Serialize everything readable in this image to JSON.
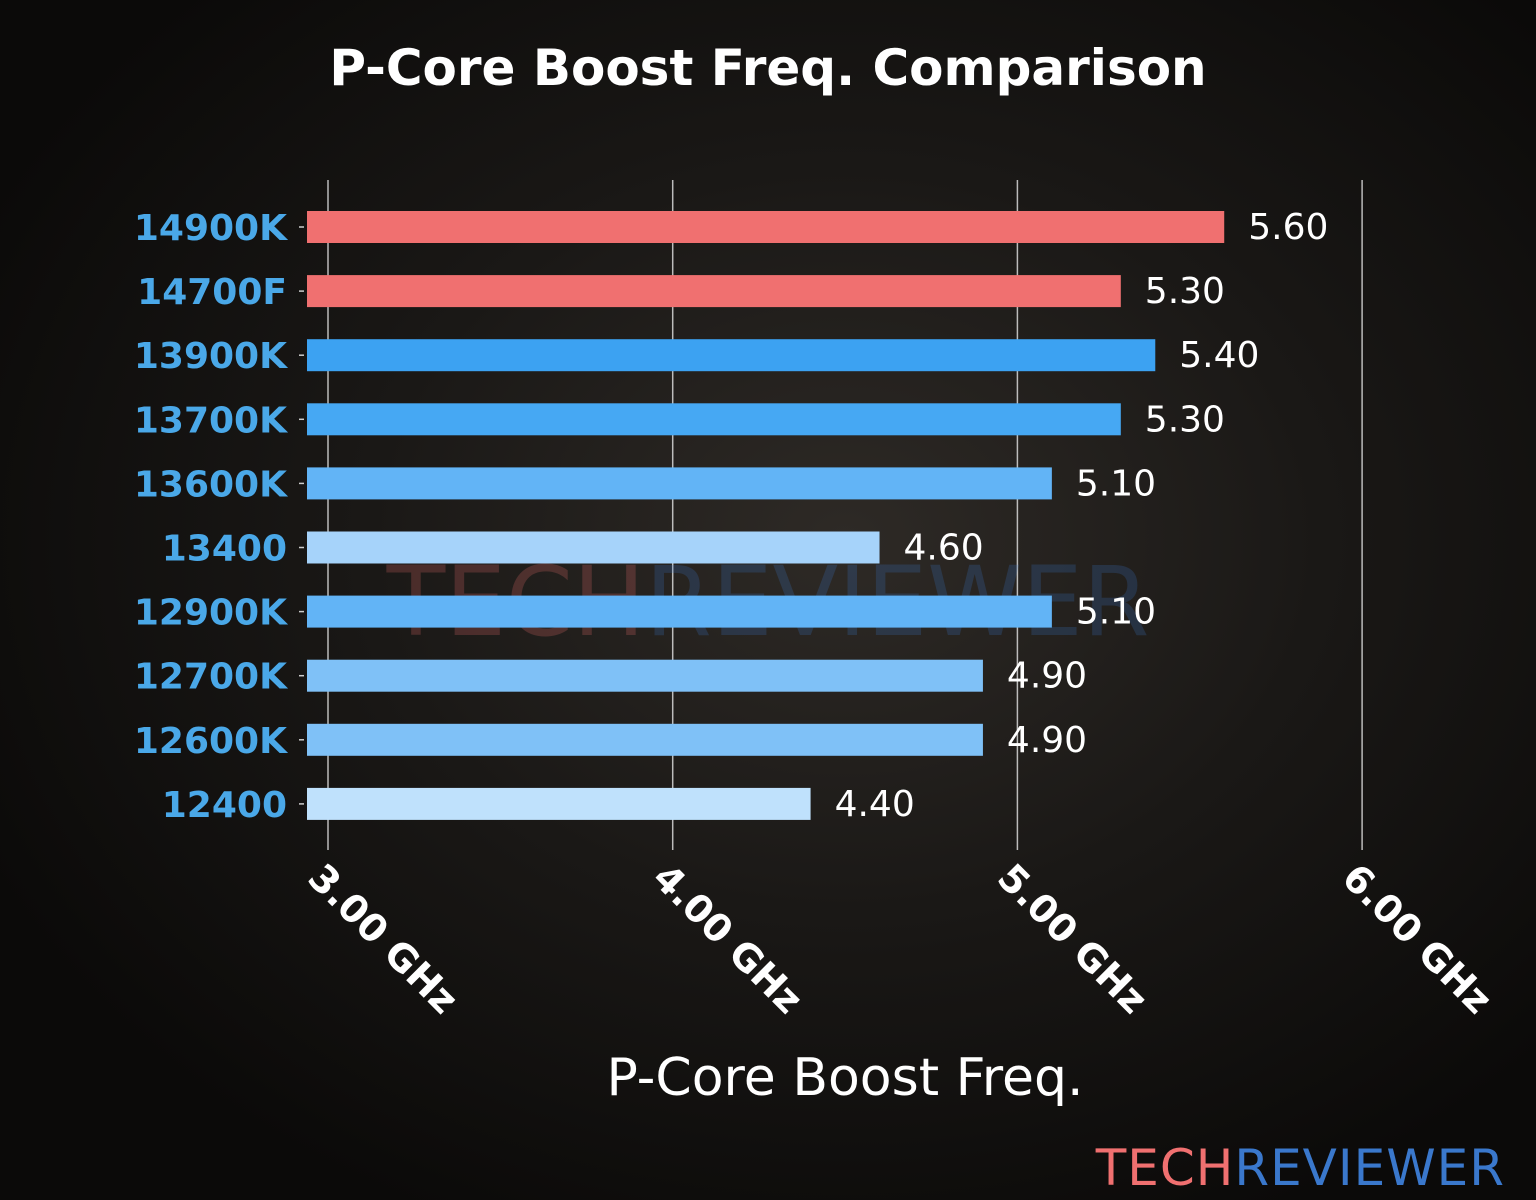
{
  "chart_data": {
    "type": "bar",
    "orientation": "horizontal",
    "title": "P-Core Boost Freq. Comparison",
    "xlabel": "P-Core Boost Freq.",
    "ylabel": "",
    "categories": [
      "14900K",
      "14700F",
      "13900K",
      "13700K",
      "13600K",
      "13400",
      "12900K",
      "12700K",
      "12600K",
      "12400"
    ],
    "values": [
      5.6,
      5.3,
      5.4,
      5.3,
      5.1,
      4.6,
      5.1,
      4.9,
      4.9,
      4.4
    ],
    "value_labels": [
      "5.60",
      "5.30",
      "5.40",
      "5.30",
      "5.10",
      "4.60",
      "5.10",
      "4.90",
      "4.90",
      "4.40"
    ],
    "colors": [
      "#f07070",
      "#f07070",
      "#3ca2f2",
      "#46a8f3",
      "#62b4f6",
      "#a6d3fa",
      "#62b4f6",
      "#7fc1f7",
      "#7fc1f7",
      "#bfe1fc"
    ],
    "xticks": [
      3,
      4,
      5,
      6
    ],
    "xtick_labels": [
      "3.00 GHz",
      "4.00 GHz",
      "5.00 GHz",
      "6.00 GHz"
    ],
    "xlim": [
      2.94,
      6.0
    ],
    "grid": true,
    "label_color": "#4aa8e8"
  },
  "watermark": {
    "part1": "TECH",
    "part2": "REVIEWER"
  },
  "logo": {
    "part1": "TECH",
    "part2": "REVIEWER",
    "color1": "#f07070",
    "color2": "#3a78cc"
  }
}
